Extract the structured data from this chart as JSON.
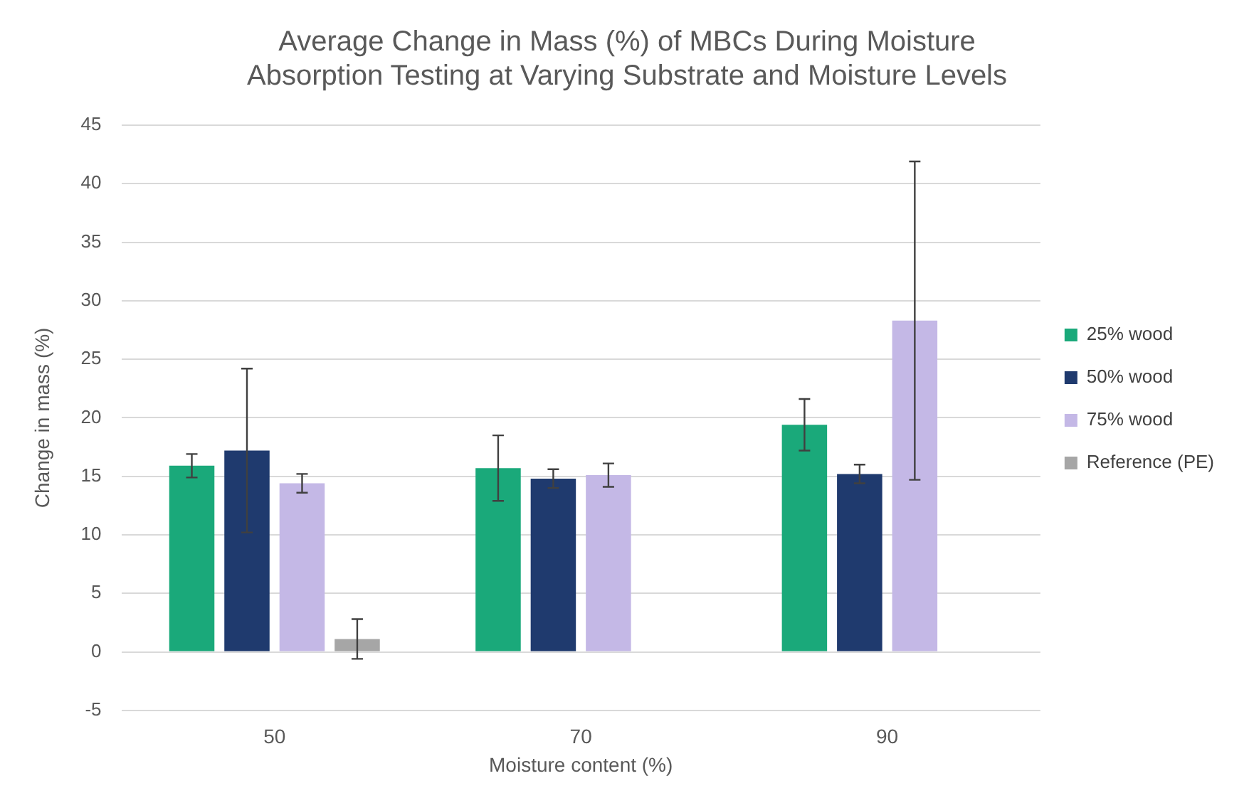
{
  "chart_data": {
    "type": "bar",
    "title": "Average Change in Mass (%) of MBCs During Moisture Absorption Testing at Varying Substrate and Moisture Levels",
    "xlabel": "Moisture content (%)",
    "ylabel": "Change in mass (%)",
    "categories": [
      "50",
      "70",
      "90"
    ],
    "series": [
      {
        "name": "25% wood",
        "color": "#1aa97a",
        "values": [
          15.9,
          15.7,
          19.4
        ],
        "errors": [
          1,
          2.8,
          2.2
        ]
      },
      {
        "name": "50% wood",
        "color": "#1f3a6e",
        "values": [
          17.2,
          14.8,
          15.2
        ],
        "errors": [
          7,
          0.8,
          0.8
        ]
      },
      {
        "name": "75% wood",
        "color": "#c4b8e6",
        "values": [
          14.4,
          15.1,
          28.3
        ],
        "errors": [
          0.8,
          1,
          13.6
        ]
      },
      {
        "name": "Reference (PE)",
        "color": "#a6a6a6",
        "values": [
          1.1,
          null,
          null
        ],
        "errors": [
          1.7,
          null,
          null
        ]
      }
    ],
    "ylim": [
      -5,
      45
    ],
    "yticks": [
      -5,
      0,
      5,
      10,
      15,
      20,
      25,
      30,
      35,
      40,
      45
    ],
    "grid": "y",
    "legend": "right"
  }
}
